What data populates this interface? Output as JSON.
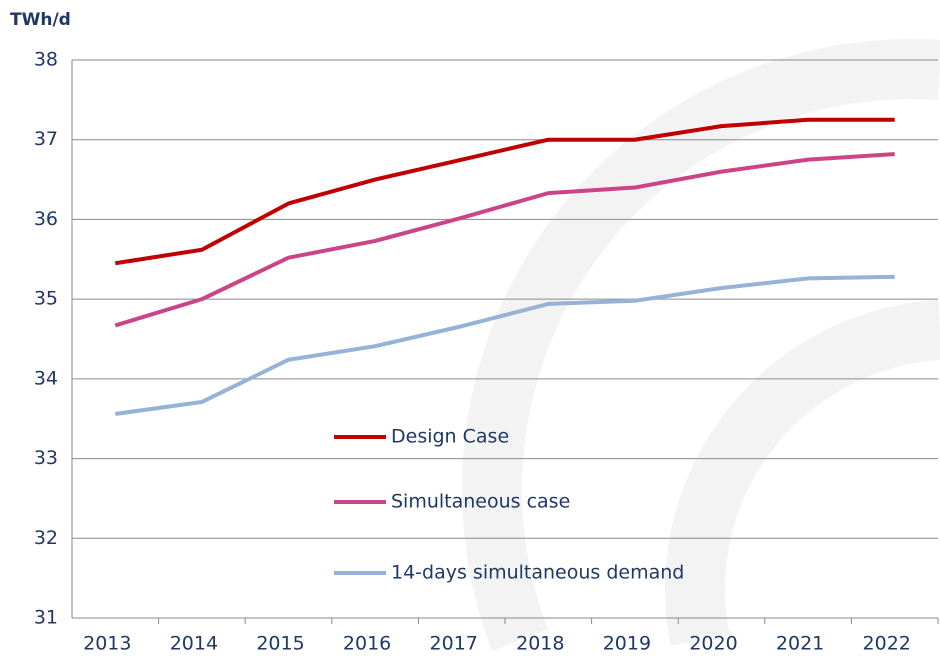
{
  "chart_data": {
    "type": "line",
    "y_axis_label": "TWh/d",
    "categories": [
      "2013",
      "2014",
      "2015",
      "2016",
      "2017",
      "2018",
      "2019",
      "2020",
      "2021",
      "2022"
    ],
    "series": [
      {
        "name": "Design Case",
        "color": "#c00000",
        "values": [
          35.45,
          35.62,
          36.2,
          36.5,
          36.75,
          37.0,
          37.0,
          37.17,
          37.25,
          37.25
        ]
      },
      {
        "name": "Simultaneous case",
        "color": "#cc4488",
        "values": [
          34.67,
          35.0,
          35.52,
          35.73,
          36.02,
          36.33,
          36.4,
          36.6,
          36.75,
          36.82
        ]
      },
      {
        "name": "14-days simultaneous demand",
        "color": "#95b3d7",
        "values": [
          33.56,
          33.71,
          34.24,
          34.41,
          34.66,
          34.94,
          34.98,
          35.14,
          35.26,
          35.28
        ]
      }
    ],
    "ylim": [
      31,
      38
    ],
    "yticks": [
      31,
      32,
      33,
      34,
      35,
      36,
      37,
      38
    ],
    "grid": true
  }
}
